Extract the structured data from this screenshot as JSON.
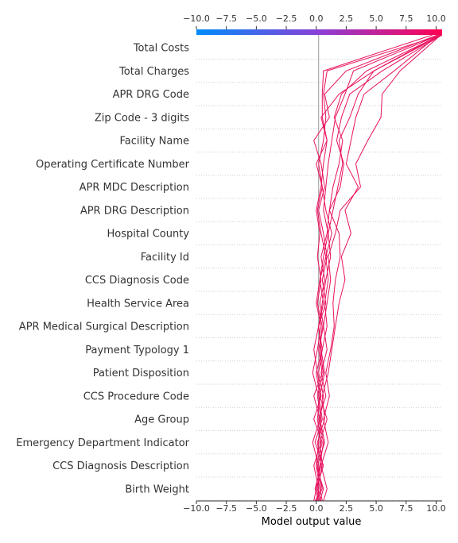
{
  "chart_data": {
    "type": "line",
    "subtype": "shap-decision-plot",
    "xlabel": "Model output value",
    "xlim": [
      -10,
      10.5
    ],
    "base_value": 0.2,
    "ticks": [
      -10,
      -7.5,
      -5,
      -2.5,
      0,
      2.5,
      5,
      7.5,
      10
    ],
    "tick_labels": [
      "−10.0",
      "−7.5",
      "−5.0",
      "−2.5",
      "0.0",
      "2.5",
      "5.0",
      "7.5",
      "10.0"
    ],
    "colorbar": {
      "low_color": "#008bfb",
      "mid_color": "#8a3fd6",
      "high_color": "#ff0051",
      "range": [
        -10,
        10.5
      ]
    },
    "line_color": "#e8115e",
    "grid": "dotted",
    "features": [
      "Total Costs",
      "Total Charges",
      "APR DRG Code",
      "Zip Code - 3 digits",
      "Facility Name",
      "Operating Certificate Number",
      "APR MDC Description",
      "APR DRG Description",
      "Hospital County",
      "Facility Id",
      "CCS Diagnosis Code",
      "Health Service Area",
      "APR Medical Surgical Description",
      "Payment Typology 1",
      "Patient Disposition",
      "CCS Procedure Code",
      "Age Group",
      "Emergency Department Indicator",
      "CCS Diagnosis Description",
      "Birth Weight"
    ],
    "series": [
      {
        "values": [
          0.1,
          0.2,
          -0.2,
          0.4,
          0.1,
          0.3,
          0.0,
          0.5,
          0.2,
          0.6,
          0.3,
          0.8,
          0.4,
          0.1,
          0.5,
          0.2,
          0.6,
          0.8,
          0.6,
          0.9,
          10.5
        ]
      },
      {
        "values": [
          0.3,
          0.0,
          0.6,
          -0.1,
          0.5,
          0.2,
          -0.3,
          0.1,
          0.4,
          0.0,
          0.3,
          0.6,
          1.0,
          0.6,
          0.8,
          1.0,
          1.3,
          1.6,
          2.4,
          3.1,
          10.3
        ]
      },
      {
        "values": [
          0.5,
          0.3,
          0.0,
          0.5,
          -0.2,
          0.4,
          0.1,
          -0.2,
          0.2,
          0.5,
          0.8,
          1.2,
          1.0,
          1.4,
          1.8,
          2.2,
          1.9,
          2.8,
          3.5,
          4.8,
          10.5
        ]
      },
      {
        "values": [
          -0.1,
          0.4,
          0.2,
          -0.3,
          0.3,
          -0.2,
          0.5,
          0.2,
          0.6,
          0.9,
          1.2,
          1.0,
          1.6,
          2.0,
          3.7,
          3.3,
          4.3,
          5.4,
          5.5,
          7.0,
          10.4
        ]
      },
      {
        "values": [
          0.2,
          -0.1,
          0.4,
          0.1,
          0.7,
          0.5,
          1.0,
          1.3,
          1.6,
          1.9,
          2.4,
          2.1,
          2.9,
          2.4,
          3.5,
          2.5,
          2.9,
          3.3,
          4.0,
          6.5,
          10.2
        ]
      },
      {
        "values": [
          0.6,
          0.9,
          0.4,
          1.0,
          0.6,
          1.1,
          0.8,
          1.2,
          1.5,
          1.4,
          1.6,
          2.0,
          1.9,
          1.1,
          2.0,
          2.3,
          1.7,
          2.1,
          2.8,
          5.5,
          10.5
        ]
      },
      {
        "values": [
          0.0,
          0.5,
          0.1,
          0.7,
          0.3,
          0.6,
          0.2,
          0.5,
          0.9,
          0.7,
          1.0,
          0.8,
          1.3,
          0.8,
          0.5,
          0.0,
          0.9,
          0.4,
          1.9,
          4.8,
          10.3
        ]
      },
      {
        "values": [
          0.4,
          0.1,
          0.5,
          0.3,
          0.9,
          0.3,
          0.7,
          0.4,
          0.2,
          0.8,
          0.5,
          0.9,
          0.6,
          0.2,
          0.7,
          0.4,
          -0.2,
          1.1,
          0.7,
          2.5,
          10.1
        ]
      },
      {
        "values": [
          -0.2,
          0.0,
          0.3,
          0.6,
          0.2,
          0.8,
          0.4,
          0.9,
          0.6,
          0.3,
          0.7,
          0.4,
          0.9,
          1.1,
          1.4,
          1.9,
          2.2,
          1.5,
          2.1,
          4.2,
          10.4
        ]
      },
      {
        "values": [
          0.3,
          0.6,
          0.0,
          0.2,
          0.4,
          0.1,
          0.6,
          0.3,
          0.5,
          0.1,
          0.4,
          0.1,
          0.3,
          0.0,
          0.4,
          0.6,
          0.9,
          0.5,
          0.5,
          0.6,
          9.7
        ]
      }
    ]
  }
}
